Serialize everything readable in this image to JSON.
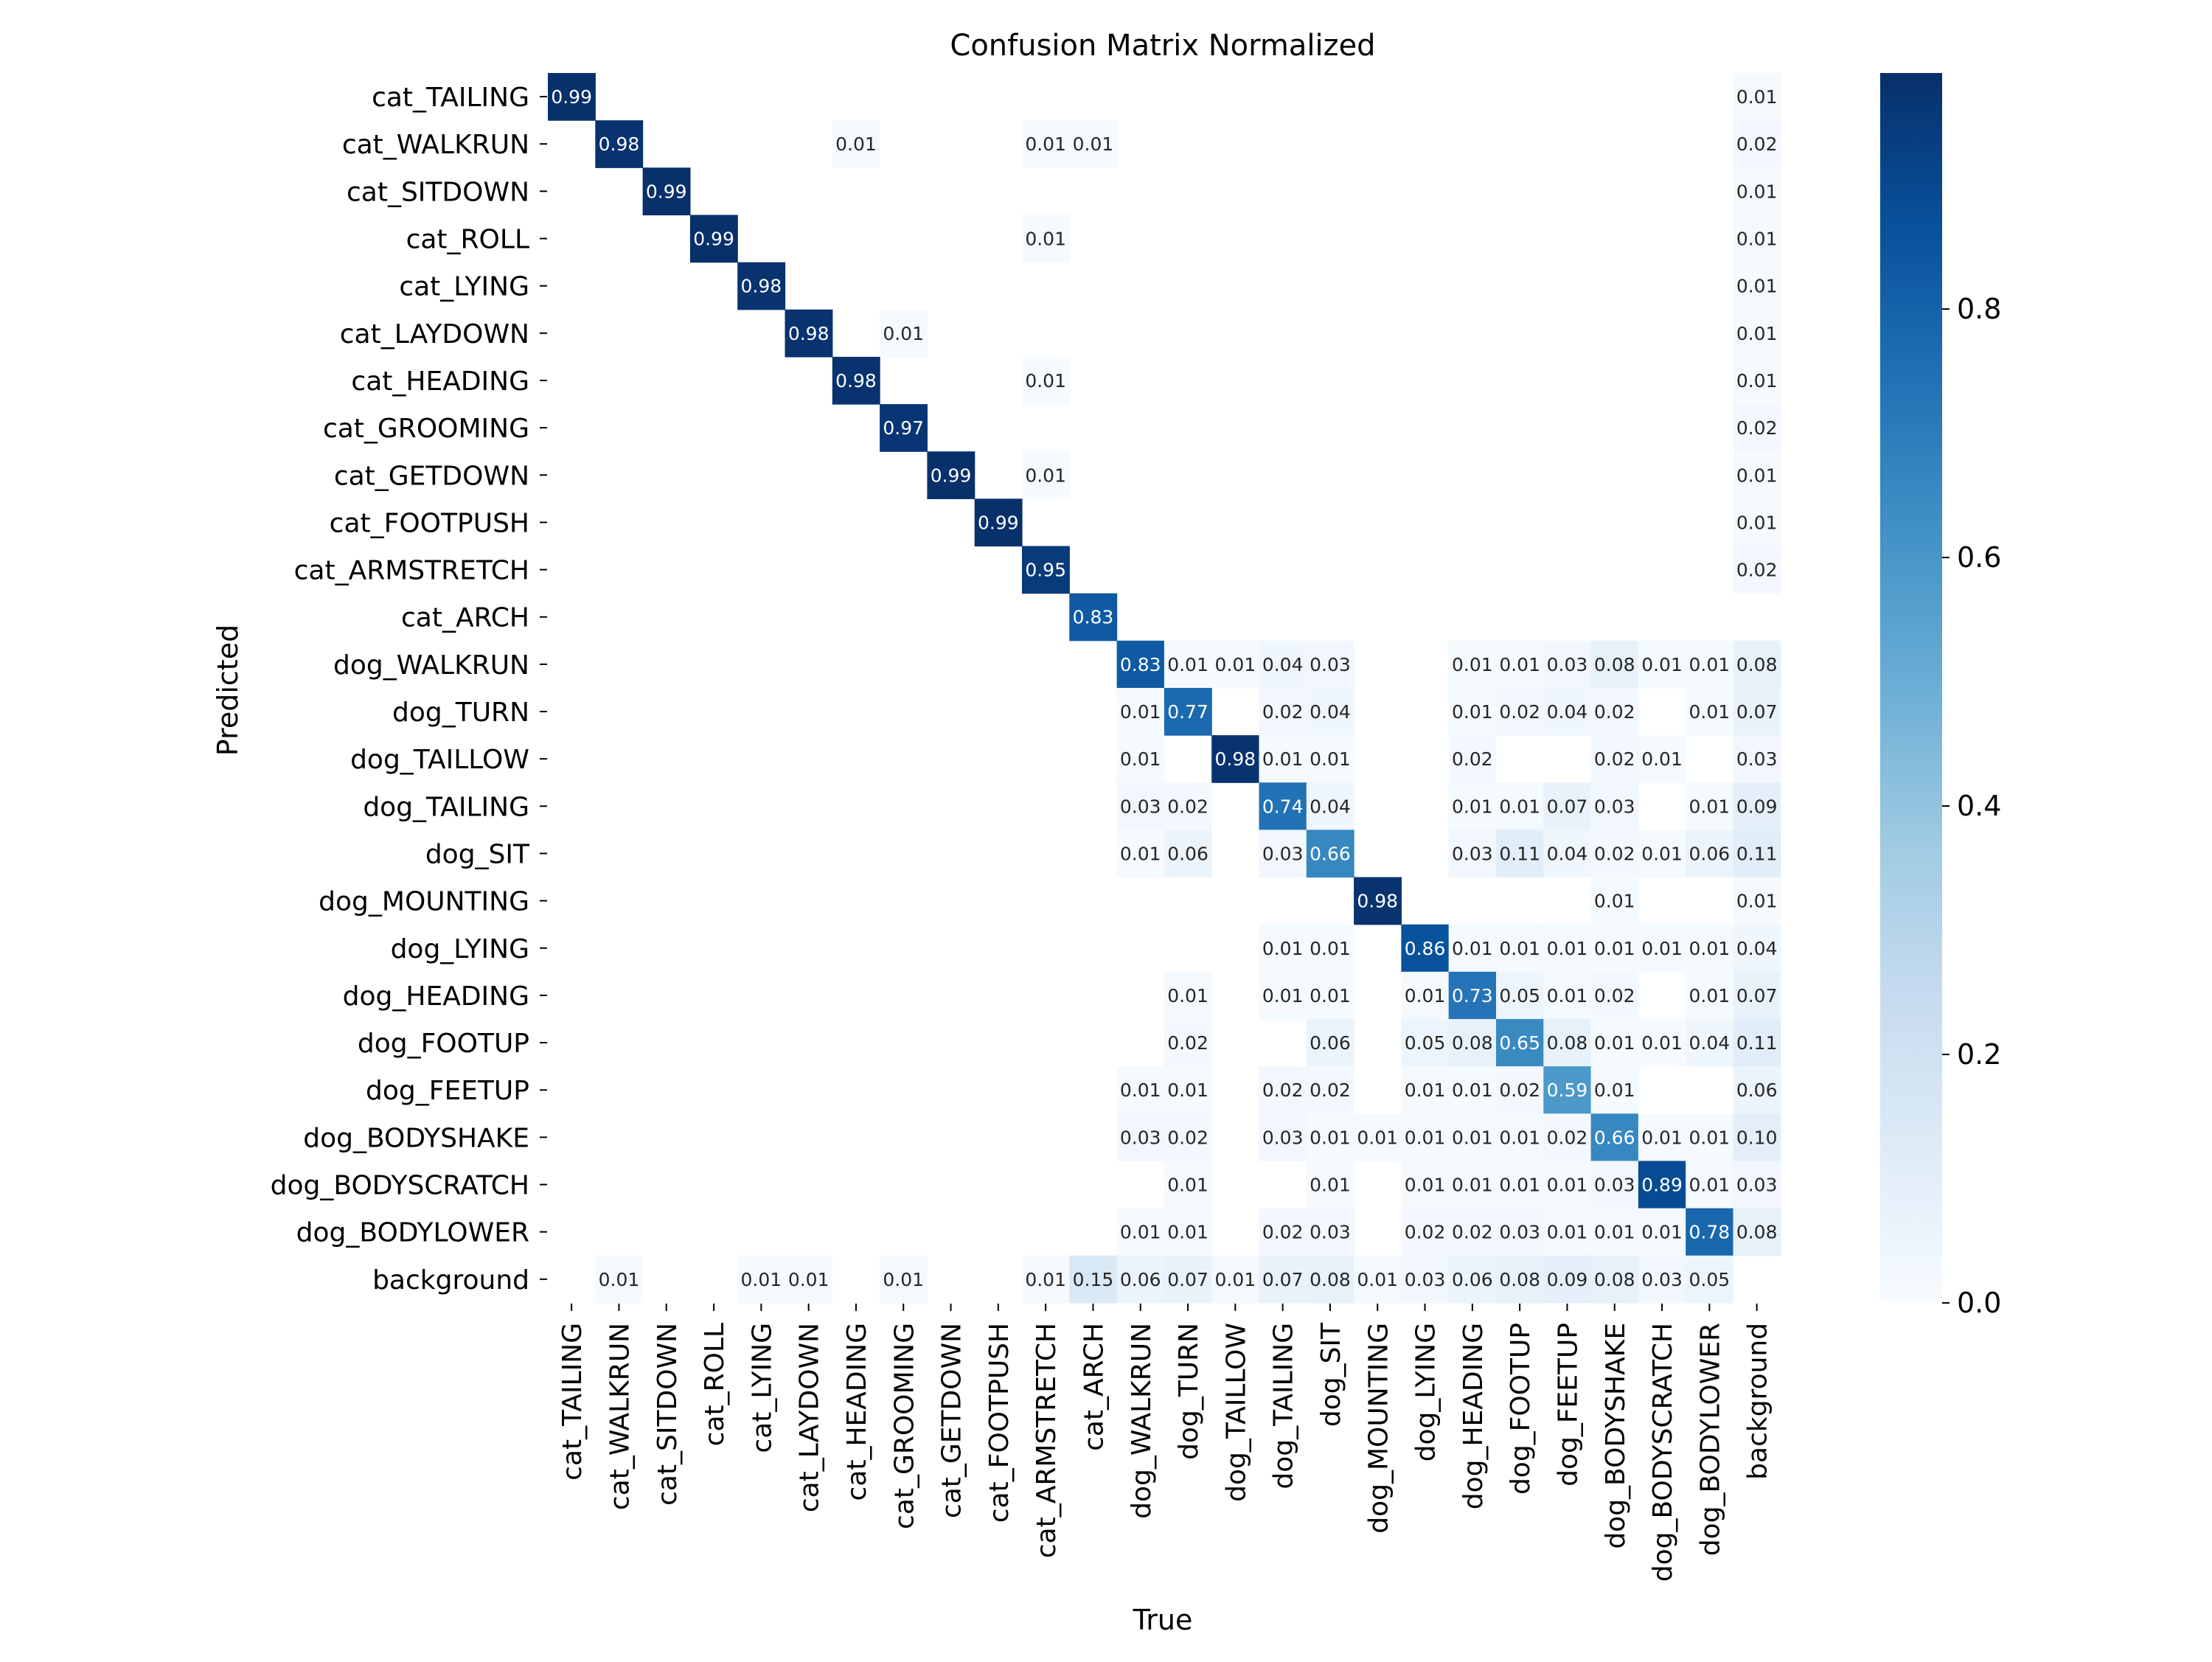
{
  "chart_data": {
    "type": "heatmap",
    "title": "Confusion Matrix Normalized",
    "xlabel": "True",
    "ylabel": "Predicted",
    "labels": [
      "cat_TAILING",
      "cat_WALKRUN",
      "cat_SITDOWN",
      "cat_ROLL",
      "cat_LYING",
      "cat_LAYDOWN",
      "cat_HEADING",
      "cat_GROOMING",
      "cat_GETDOWN",
      "cat_FOOTPUSH",
      "cat_ARMSTRETCH",
      "cat_ARCH",
      "dog_WALKRUN",
      "dog_TURN",
      "dog_TAILLOW",
      "dog_TAILING",
      "dog_SIT",
      "dog_MOUNTING",
      "dog_LYING",
      "dog_HEADING",
      "dog_FOOTUP",
      "dog_FEETUP",
      "dog_BODYSHAKE",
      "dog_BODYSCRATCH",
      "dog_BODYLOWER",
      "background"
    ],
    "matrix": [
      [
        0.99,
        0,
        0,
        0,
        0,
        0,
        0,
        0,
        0,
        0,
        0,
        0,
        0,
        0,
        0,
        0,
        0,
        0,
        0,
        0,
        0,
        0,
        0,
        0,
        0,
        0.01
      ],
      [
        0,
        0.98,
        0,
        0,
        0,
        0,
        0.01,
        0,
        0,
        0,
        0.01,
        0.01,
        0,
        0,
        0,
        0,
        0,
        0,
        0,
        0,
        0,
        0,
        0,
        0,
        0,
        0.02
      ],
      [
        0,
        0,
        0.99,
        0,
        0,
        0,
        0,
        0,
        0,
        0,
        0,
        0,
        0,
        0,
        0,
        0,
        0,
        0,
        0,
        0,
        0,
        0,
        0,
        0,
        0,
        0.01
      ],
      [
        0,
        0,
        0,
        0.99,
        0,
        0,
        0,
        0,
        0,
        0,
        0.01,
        0,
        0,
        0,
        0,
        0,
        0,
        0,
        0,
        0,
        0,
        0,
        0,
        0,
        0,
        0.01
      ],
      [
        0,
        0,
        0,
        0,
        0.98,
        0,
        0,
        0,
        0,
        0,
        0,
        0,
        0,
        0,
        0,
        0,
        0,
        0,
        0,
        0,
        0,
        0,
        0,
        0,
        0,
        0.01
      ],
      [
        0,
        0,
        0,
        0,
        0,
        0.98,
        0,
        0.01,
        0,
        0,
        0,
        0,
        0,
        0,
        0,
        0,
        0,
        0,
        0,
        0,
        0,
        0,
        0,
        0,
        0,
        0.01
      ],
      [
        0,
        0,
        0,
        0,
        0,
        0,
        0.98,
        0,
        0,
        0,
        0.01,
        0,
        0,
        0,
        0,
        0,
        0,
        0,
        0,
        0,
        0,
        0,
        0,
        0,
        0,
        0.01
      ],
      [
        0,
        0,
        0,
        0,
        0,
        0,
        0,
        0.97,
        0,
        0,
        0,
        0,
        0,
        0,
        0,
        0,
        0,
        0,
        0,
        0,
        0,
        0,
        0,
        0,
        0,
        0.02
      ],
      [
        0,
        0,
        0,
        0,
        0,
        0,
        0,
        0,
        0.99,
        0,
        0.01,
        0,
        0,
        0,
        0,
        0,
        0,
        0,
        0,
        0,
        0,
        0,
        0,
        0,
        0,
        0.01
      ],
      [
        0,
        0,
        0,
        0,
        0,
        0,
        0,
        0,
        0,
        0.99,
        0,
        0,
        0,
        0,
        0,
        0,
        0,
        0,
        0,
        0,
        0,
        0,
        0,
        0,
        0,
        0.01
      ],
      [
        0,
        0,
        0,
        0,
        0,
        0,
        0,
        0,
        0,
        0,
        0.95,
        0,
        0,
        0,
        0,
        0,
        0,
        0,
        0,
        0,
        0,
        0,
        0,
        0,
        0,
        0.02
      ],
      [
        0,
        0,
        0,
        0,
        0,
        0,
        0,
        0,
        0,
        0,
        0,
        0.83,
        0,
        0,
        0,
        0,
        0,
        0,
        0,
        0,
        0,
        0,
        0,
        0,
        0,
        0
      ],
      [
        0,
        0,
        0,
        0,
        0,
        0,
        0,
        0,
        0,
        0,
        0,
        0,
        0.83,
        0.01,
        0.01,
        0.04,
        0.03,
        0,
        0,
        0.01,
        0.01,
        0.03,
        0.08,
        0.01,
        0.01,
        0.08
      ],
      [
        0,
        0,
        0,
        0,
        0,
        0,
        0,
        0,
        0,
        0,
        0,
        0,
        0.01,
        0.77,
        0,
        0.02,
        0.04,
        0,
        0,
        0.01,
        0.02,
        0.04,
        0.02,
        0,
        0.01,
        0.07
      ],
      [
        0,
        0,
        0,
        0,
        0,
        0,
        0,
        0,
        0,
        0,
        0,
        0,
        0.01,
        0,
        0.98,
        0.01,
        0.01,
        0,
        0,
        0.02,
        0,
        0,
        0.02,
        0.01,
        0,
        0.03
      ],
      [
        0,
        0,
        0,
        0,
        0,
        0,
        0,
        0,
        0,
        0,
        0,
        0,
        0.03,
        0.02,
        0,
        0.74,
        0.04,
        0,
        0,
        0.01,
        0.01,
        0.07,
        0.03,
        0,
        0.01,
        0.09
      ],
      [
        0,
        0,
        0,
        0,
        0,
        0,
        0,
        0,
        0,
        0,
        0,
        0,
        0.01,
        0.06,
        0,
        0.03,
        0.66,
        0,
        0,
        0.03,
        0.11,
        0.04,
        0.02,
        0.01,
        0.06,
        0.11
      ],
      [
        0,
        0,
        0,
        0,
        0,
        0,
        0,
        0,
        0,
        0,
        0,
        0,
        0,
        0,
        0,
        0,
        0,
        0.98,
        0,
        0,
        0,
        0,
        0.01,
        0,
        0,
        0.01
      ],
      [
        0,
        0,
        0,
        0,
        0,
        0,
        0,
        0,
        0,
        0,
        0,
        0,
        0,
        0,
        0,
        0.01,
        0.01,
        0,
        0.86,
        0.01,
        0.01,
        0.01,
        0.01,
        0.01,
        0.01,
        0.04
      ],
      [
        0,
        0,
        0,
        0,
        0,
        0,
        0,
        0,
        0,
        0,
        0,
        0,
        0,
        0.01,
        0,
        0.01,
        0.01,
        0,
        0.01,
        0.73,
        0.05,
        0.01,
        0.02,
        0,
        0.01,
        0.07
      ],
      [
        0,
        0,
        0,
        0,
        0,
        0,
        0,
        0,
        0,
        0,
        0,
        0,
        0,
        0.02,
        0,
        0,
        0.06,
        0,
        0.05,
        0.08,
        0.65,
        0.08,
        0.01,
        0.01,
        0.04,
        0.11
      ],
      [
        0,
        0,
        0,
        0,
        0,
        0,
        0,
        0,
        0,
        0,
        0,
        0,
        0.01,
        0.01,
        0,
        0.02,
        0.02,
        0,
        0.01,
        0.01,
        0.02,
        0.59,
        0.01,
        0,
        0,
        0.06
      ],
      [
        0,
        0,
        0,
        0,
        0,
        0,
        0,
        0,
        0,
        0,
        0,
        0,
        0.03,
        0.02,
        0,
        0.03,
        0.01,
        0.01,
        0.01,
        0.01,
        0.01,
        0.02,
        0.66,
        0.01,
        0.01,
        0.1
      ],
      [
        0,
        0,
        0,
        0,
        0,
        0,
        0,
        0,
        0,
        0,
        0,
        0,
        0,
        0.01,
        0,
        0,
        0.01,
        0,
        0.01,
        0.01,
        0.01,
        0.01,
        0.03,
        0.89,
        0.01,
        0.03
      ],
      [
        0,
        0,
        0,
        0,
        0,
        0,
        0,
        0,
        0,
        0,
        0,
        0,
        0.01,
        0.01,
        0,
        0.02,
        0.03,
        0,
        0.02,
        0.02,
        0.03,
        0.01,
        0.01,
        0.01,
        0.78,
        0.08
      ],
      [
        0,
        0.01,
        0,
        0,
        0.01,
        0.01,
        0,
        0.01,
        0,
        0,
        0.01,
        0.15,
        0.06,
        0.07,
        0.01,
        0.07,
        0.08,
        0.01,
        0.03,
        0.06,
        0.08,
        0.09,
        0.08,
        0.03,
        0.05,
        0
      ]
    ],
    "colorbar": {
      "min": 0.0,
      "max": 0.99,
      "ticks": [
        "0.0",
        "0.2",
        "0.4",
        "0.6",
        "0.8"
      ],
      "colormap": "Blues"
    },
    "colors": {
      "low": "#f7fbff",
      "high": "#08306b",
      "text_dark": "#262626",
      "text_light": "#ffffff"
    }
  }
}
